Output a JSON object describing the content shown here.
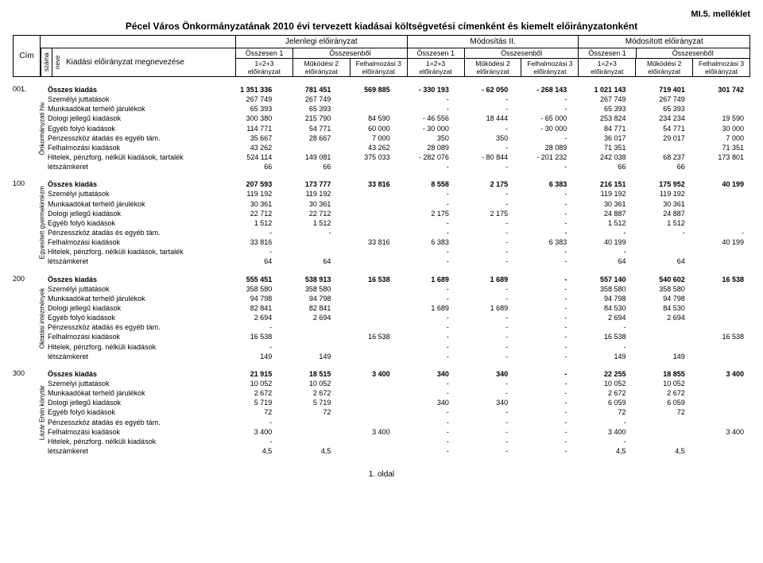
{
  "annex": "MI.5. melléklet",
  "title": "Pécel Város Önkormányzatának 2010 évi tervezett kiadásai költségvetési címenként és kiemelt előirányzatonként",
  "header": {
    "cim": "Cím",
    "col_headings": [
      "Jelenlegi előirányzat",
      "Módosítás II.",
      "Módosított előirányzat"
    ],
    "szama": "száma",
    "neve": "neve",
    "label": "Kiadási előirányzat megnevezése",
    "sub_top_left": "Összesen 1",
    "sub_top_right": "Összesenből",
    "sub1": "1=2+3 előirányzat",
    "sub2": "Működési 2 előirányzat",
    "sub3": "Felhalmozási 3 előirányzat"
  },
  "row_labels": [
    "Összes kiadás",
    "Személyi juttatások",
    "Munkaadókat terhelő járulékok",
    "Dologi jellegű kiadások",
    "Egyéb folyó kiadások",
    "Pénzesszköz átadás és egyéb tám.",
    "Felhalmozási kiadások",
    "Hitelek, pénzforg. nélküli kiadások, tartalék",
    "létszámkeret"
  ],
  "row_labels_short8": "Hitelek, pénzforg. nélküli kiadások",
  "sections": [
    {
      "code": "001.",
      "side": "Önkormányzati hiv.",
      "rows": [
        [
          "1 351 336",
          "781 451",
          "569 885",
          "- 330 193",
          "- 62 050",
          "- 268 143",
          "1 021 143",
          "719 401",
          "301 742"
        ],
        [
          "267 749",
          "267 749",
          "",
          "-",
          "-",
          "-",
          "267 749",
          "267 749",
          ""
        ],
        [
          "65 393",
          "65 393",
          "",
          "-",
          "-",
          "-",
          "65 393",
          "65 393",
          ""
        ],
        [
          "300 380",
          "215 790",
          "84 590",
          "- 46 556",
          "18 444",
          "- 65 000",
          "253 824",
          "234 234",
          "19 590"
        ],
        [
          "114 771",
          "54 771",
          "60 000",
          "- 30 000",
          "-",
          "- 30 000",
          "84 771",
          "54 771",
          "30 000"
        ],
        [
          "35 667",
          "28 667",
          "7 000",
          "350",
          "350",
          "-",
          "36 017",
          "29 017",
          "7 000"
        ],
        [
          "43 262",
          "",
          "43 262",
          "28 089",
          "-",
          "28 089",
          "71 351",
          "",
          "71 351"
        ],
        [
          "524 114",
          "149 081",
          "375 033",
          "- 282 076",
          "- 80 844",
          "- 201 232",
          "242 038",
          "68 237",
          "173 801"
        ],
        [
          "66",
          "66",
          "",
          "-",
          "-",
          "-",
          "66",
          "66",
          ""
        ]
      ]
    },
    {
      "code": "100",
      "side": "Egyesített gyermekintézm",
      "rows": [
        [
          "207 593",
          "173 777",
          "33 816",
          "8 558",
          "2 175",
          "6 383",
          "216 151",
          "175 952",
          "40 199"
        ],
        [
          "119 192",
          "119 192",
          "",
          "-",
          "-",
          "-",
          "119 192",
          "119 192",
          ""
        ],
        [
          "30 361",
          "30 361",
          "",
          "-",
          "-",
          "-",
          "30 361",
          "30 361",
          ""
        ],
        [
          "22 712",
          "22 712",
          "",
          "2 175",
          "2 175",
          "-",
          "24 887",
          "24 887",
          ""
        ],
        [
          "1 512",
          "1 512",
          "",
          "-",
          "-",
          "-",
          "1 512",
          "1 512",
          ""
        ],
        [
          "-",
          "-",
          "",
          "-",
          "-",
          "-",
          "-",
          "-",
          "-"
        ],
        [
          "33 816",
          "",
          "33 816",
          "6 383",
          "-",
          "6 383",
          "40 199",
          "",
          "40 199"
        ],
        [
          "-",
          "",
          "",
          "-",
          "-",
          "-",
          "-",
          "",
          ""
        ],
        [
          "64",
          "64",
          "",
          "-",
          "-",
          "-",
          "64",
          "64",
          ""
        ]
      ]
    },
    {
      "code": "200",
      "side": "Oktatási intézmények",
      "rows": [
        [
          "555 451",
          "538 913",
          "16 538",
          "1 689",
          "1 689",
          "-",
          "557 140",
          "540 602",
          "16 538"
        ],
        [
          "358 580",
          "358 580",
          "",
          "-",
          "-",
          "-",
          "358 580",
          "358 580",
          ""
        ],
        [
          "94 798",
          "94 798",
          "",
          "-",
          "-",
          "-",
          "94 798",
          "94 798",
          ""
        ],
        [
          "82 841",
          "82 841",
          "",
          "1 689",
          "1 689",
          "-",
          "84 530",
          "84 530",
          ""
        ],
        [
          "2 694",
          "2 694",
          "",
          "-",
          "-",
          "-",
          "2 694",
          "2 694",
          ""
        ],
        [
          "-",
          "",
          "",
          "-",
          "-",
          "-",
          "-",
          "",
          ""
        ],
        [
          "16 538",
          "",
          "16 538",
          "-",
          "-",
          "-",
          "16 538",
          "",
          "16 538"
        ],
        [
          "-",
          "",
          "",
          "-",
          "-",
          "-",
          "-",
          "",
          ""
        ],
        [
          "149",
          "149",
          "",
          "-",
          "-",
          "-",
          "149",
          "149",
          ""
        ]
      ]
    },
    {
      "code": "300",
      "side": "Lázár Ervin könytár",
      "rows": [
        [
          "21 915",
          "18 515",
          "3 400",
          "340",
          "340",
          "-",
          "22 255",
          "18 855",
          "3 400"
        ],
        [
          "10 052",
          "10 052",
          "",
          "-",
          "-",
          "-",
          "10 052",
          "10 052",
          ""
        ],
        [
          "2 672",
          "2 672",
          "",
          "-",
          "-",
          "-",
          "2 672",
          "2 672",
          ""
        ],
        [
          "5 719",
          "5 719",
          "",
          "340",
          "340",
          "-",
          "6 059",
          "6 059",
          ""
        ],
        [
          "72",
          "72",
          "",
          "-",
          "-",
          "-",
          "72",
          "72",
          ""
        ],
        [
          "-",
          "",
          "",
          "-",
          "-",
          "-",
          "-",
          "",
          ""
        ],
        [
          "3 400",
          "",
          "3 400",
          "-",
          "-",
          "-",
          "3 400",
          "",
          "3 400"
        ],
        [
          "-",
          "",
          "",
          "-",
          "-",
          "-",
          "-",
          "",
          ""
        ],
        [
          "4,5",
          "4,5",
          "",
          "-",
          "-",
          "-",
          "4,5",
          "4,5",
          ""
        ]
      ]
    }
  ],
  "footer": "1. oldal"
}
